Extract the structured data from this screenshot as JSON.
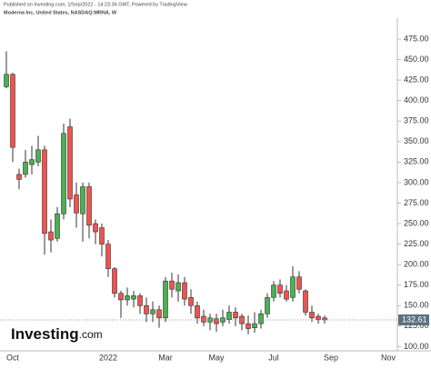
{
  "chart_data": {
    "type": "candlestick",
    "source": "Published on Investing.com, 1/Sep/2022 - 14:23:36 GMT, Powered by TradingView",
    "title": "Moderna Inc, United States, NASDAQ:MRNA, W",
    "logo": "Investing",
    "logo_suffix": ".com",
    "categories": [
      null,
      "Oct",
      null,
      null,
      null,
      null,
      null,
      null,
      null,
      null,
      null,
      null,
      null,
      null,
      null,
      null,
      "2022",
      null,
      null,
      null,
      null,
      null,
      null,
      null,
      null,
      "Mar",
      null,
      null,
      null,
      null,
      null,
      null,
      null,
      "May",
      null,
      null,
      null,
      null,
      null,
      null,
      null,
      null,
      "Jul",
      null,
      null,
      null,
      null,
      null,
      null,
      null,
      null,
      "Sep",
      null,
      null,
      null,
      null,
      null,
      null,
      null,
      null,
      "Nov"
    ],
    "open": [
      417,
      432,
      310,
      310,
      322,
      325,
      340,
      240,
      232,
      262,
      368,
      285,
      262,
      295,
      250,
      245,
      225,
      195,
      165,
      157,
      158,
      162,
      150,
      140,
      145,
      135,
      180,
      168,
      178,
      160,
      150,
      137,
      130,
      134,
      130,
      133,
      142,
      137,
      128,
      123,
      128,
      140,
      160,
      175,
      168,
      160,
      185,
      168,
      142,
      137,
      135,
      null,
      null,
      null,
      null,
      null,
      null,
      null,
      null,
      null,
      null
    ],
    "high": [
      460,
      434,
      317,
      340,
      345,
      357,
      345,
      255,
      270,
      372,
      378,
      300,
      300,
      300,
      255,
      250,
      230,
      197,
      168,
      172,
      168,
      165,
      160,
      155,
      150,
      185,
      190,
      188,
      185,
      170,
      155,
      145,
      140,
      140,
      145,
      150,
      148,
      140,
      138,
      142,
      145,
      165,
      180,
      182,
      175,
      198,
      192,
      170,
      150,
      140,
      138,
      null,
      null,
      null,
      null,
      null,
      null,
      null,
      null,
      null,
      null
    ],
    "low": [
      415,
      325,
      292,
      306,
      310,
      320,
      212,
      215,
      228,
      255,
      270,
      245,
      228,
      232,
      225,
      210,
      185,
      160,
      135,
      150,
      148,
      140,
      130,
      130,
      123,
      130,
      160,
      155,
      150,
      140,
      128,
      125,
      120,
      118,
      125,
      128,
      125,
      120,
      115,
      117,
      122,
      135,
      155,
      160,
      155,
      155,
      165,
      138,
      130,
      128,
      128,
      null,
      null,
      null,
      null,
      null,
      null,
      null,
      null,
      null,
      null
    ],
    "close": [
      432,
      343,
      304,
      325,
      328,
      340,
      238,
      230,
      262,
      360,
      280,
      263,
      295,
      248,
      240,
      225,
      195,
      165,
      157,
      162,
      162,
      150,
      140,
      145,
      135,
      180,
      170,
      178,
      158,
      150,
      135,
      130,
      135,
      128,
      135,
      142,
      135,
      128,
      122,
      128,
      140,
      160,
      175,
      165,
      158,
      185,
      170,
      142,
      135,
      133,
      132.61,
      null,
      null,
      null,
      null,
      null,
      null,
      null,
      null,
      null,
      null
    ],
    "up_color": "#4caf50",
    "down_color": "#ef5350",
    "last_price": 132.61,
    "ylim": [
      96,
      485
    ],
    "yticks": [
      {
        "value": 100,
        "label": "100.00"
      },
      {
        "value": 125,
        "label": "125.00"
      },
      {
        "value": 150,
        "label": "150.00"
      },
      {
        "value": 175,
        "label": "175.00"
      },
      {
        "value": 200,
        "label": "200.00"
      },
      {
        "value": 225,
        "label": "225.00"
      },
      {
        "value": 250,
        "label": "250.00"
      },
      {
        "value": 275,
        "label": "275.00"
      },
      {
        "value": 300,
        "label": "300.00"
      },
      {
        "value": 325,
        "label": "325.00"
      },
      {
        "value": 350,
        "label": "350.00"
      },
      {
        "value": 375,
        "label": "375.00"
      },
      {
        "value": 400,
        "label": "400.00"
      },
      {
        "value": 425,
        "label": "425.00"
      },
      {
        "value": 450,
        "label": "450.00"
      },
      {
        "value": 475,
        "label": "475.00"
      }
    ]
  }
}
